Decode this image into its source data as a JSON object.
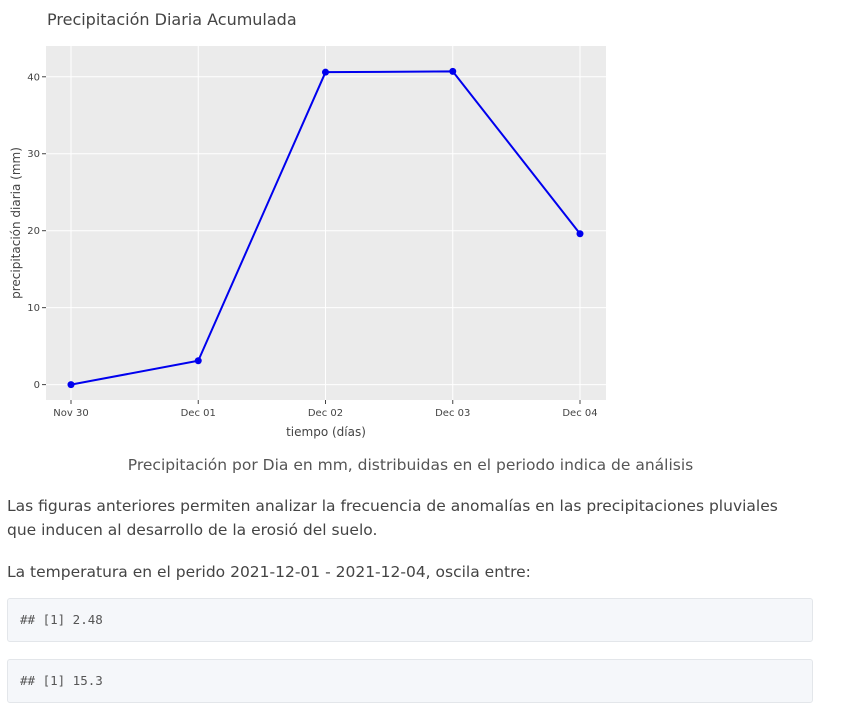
{
  "chart_data": {
    "type": "line",
    "title": "Precipitación Diaria Acumulada",
    "xlabel": "tiempo (días)",
    "ylabel": "precipitación diaria (mm)",
    "categories": [
      "Nov 30",
      "Dec 01",
      "Dec 02",
      "Dec 03",
      "Dec 04"
    ],
    "x": [
      "2021-11-30",
      "2021-12-01",
      "2021-12-02",
      "2021-12-03",
      "2021-12-04"
    ],
    "values": [
      0,
      3.1,
      40.6,
      40.7,
      19.6
    ],
    "yticks": [
      0,
      10,
      20,
      30,
      40
    ],
    "ytick_labels": [
      "0",
      "10",
      "20",
      "30",
      "40"
    ],
    "ylim": [
      -2,
      44
    ],
    "grid": true,
    "line_color": "#0000ee",
    "background_color": "#ebebeb"
  },
  "caption": "Precipitación por Dia en mm, distribuidas en el periodo indica de análisis",
  "paragraphs": [
    "Las figuras anteriores permiten analizar la frecuencia de anomalías en las precipitaciones pluviales que inducen al desarrollo de la erosió del suelo.",
    "La temperatura en el perido 2021-12-01 - 2021-12-04, oscila entre:"
  ],
  "outputs": [
    "## [1] 2.48",
    "## [1] 15.3"
  ]
}
